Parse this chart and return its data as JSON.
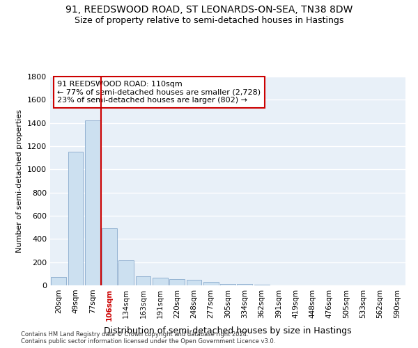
{
  "title1": "91, REEDSWOOD ROAD, ST LEONARDS-ON-SEA, TN38 8DW",
  "title2": "Size of property relative to semi-detached houses in Hastings",
  "xlabel": "Distribution of semi-detached houses by size in Hastings",
  "ylabel": "Number of semi-detached properties",
  "categories": [
    "20sqm",
    "49sqm",
    "77sqm",
    "106sqm",
    "134sqm",
    "163sqm",
    "191sqm",
    "220sqm",
    "248sqm",
    "277sqm",
    "305sqm",
    "334sqm",
    "362sqm",
    "391sqm",
    "419sqm",
    "448sqm",
    "476sqm",
    "505sqm",
    "533sqm",
    "562sqm",
    "590sqm"
  ],
  "values": [
    75,
    1150,
    1420,
    490,
    215,
    80,
    65,
    55,
    50,
    30,
    15,
    15,
    5,
    0,
    0,
    0,
    0,
    0,
    0,
    0,
    0
  ],
  "bar_color": "#cce0f0",
  "bar_edge_color": "#88aacc",
  "highlight_tick_index": 3,
  "vline_color": "#cc0000",
  "annotation_text": "91 REEDSWOOD ROAD: 110sqm\n← 77% of semi-detached houses are smaller (2,728)\n23% of semi-detached houses are larger (802) →",
  "annotation_box_color": "#cc0000",
  "ylim": [
    0,
    1800
  ],
  "yticks": [
    0,
    200,
    400,
    600,
    800,
    1000,
    1200,
    1400,
    1600,
    1800
  ],
  "footer": "Contains HM Land Registry data © Crown copyright and database right 2024.\nContains public sector information licensed under the Open Government Licence v3.0.",
  "bg_color": "#e8f0f8",
  "grid_color": "#ffffff",
  "title1_fontsize": 10,
  "title2_fontsize": 9
}
